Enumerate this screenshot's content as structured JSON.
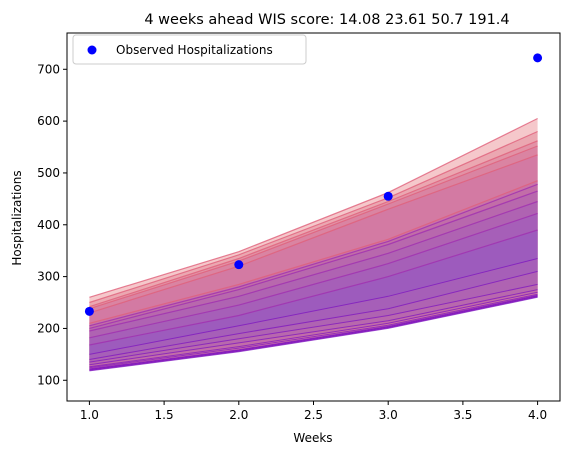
{
  "chart_data": {
    "type": "area",
    "title": "4 weeks ahead WIS score:  14.08  23.61  50.7  191.4",
    "xlabel": "Weeks",
    "ylabel": "Hospitalizations",
    "xlim": [
      0.85,
      4.15
    ],
    "ylim": [
      60,
      770
    ],
    "xticks": [
      1.0,
      1.5,
      2.0,
      2.5,
      3.0,
      3.5,
      4.0
    ],
    "xtick_labels": [
      "1.0",
      "1.5",
      "2.0",
      "2.5",
      "3.0",
      "3.5",
      "4.0"
    ],
    "yticks": [
      100,
      200,
      300,
      400,
      500,
      600,
      700
    ],
    "ytick_labels": [
      "100",
      "200",
      "300",
      "400",
      "500",
      "600",
      "700"
    ],
    "grid": false,
    "legend": {
      "placement": "top-left",
      "entries": [
        "Observed Hospitalizations"
      ]
    },
    "x": [
      1,
      2,
      3,
      4
    ],
    "observed": {
      "name": "Observed Hospitalizations",
      "color": "#0000ff",
      "values": [
        233,
        323,
        455,
        722
      ]
    },
    "quantile_bands": [
      {
        "lower": [
          118,
          155,
          200,
          260
        ],
        "upper": [
          260,
          348,
          462,
          605
        ],
        "color": "#e8848c"
      },
      {
        "lower": [
          119,
          156,
          201,
          261
        ],
        "upper": [
          250,
          342,
          452,
          580
        ],
        "color": "#e07e92"
      },
      {
        "lower": [
          120,
          157,
          202,
          262
        ],
        "upper": [
          242,
          335,
          445,
          562
        ],
        "color": "#d87998"
      },
      {
        "lower": [
          121,
          158,
          203,
          263
        ],
        "upper": [
          238,
          330,
          440,
          552
        ],
        "color": "#d0749e"
      },
      {
        "lower": [
          122,
          159,
          204,
          264
        ],
        "upper": [
          230,
          320,
          430,
          535
        ],
        "color": "#c96fa3"
      },
      {
        "lower": [
          124,
          162,
          206,
          266
        ],
        "upper": [
          210,
          285,
          372,
          485
        ],
        "color": "#c06aa9"
      },
      {
        "lower": [
          126,
          165,
          210,
          270
        ],
        "upper": [
          205,
          280,
          368,
          478
        ],
        "color": "#b766ae"
      },
      {
        "lower": [
          130,
          172,
          215,
          275
        ],
        "upper": [
          200,
          275,
          362,
          465
        ],
        "color": "#ae62b4"
      },
      {
        "lower": [
          135,
          180,
          225,
          285
        ],
        "upper": [
          195,
          262,
          345,
          445
        ],
        "color": "#a55eb9"
      },
      {
        "lower": [
          140,
          190,
          238,
          310
        ],
        "upper": [
          182,
          245,
          325,
          422
        ],
        "color": "#9b5abf"
      },
      {
        "lower": [
          150,
          205,
          262,
          335
        ],
        "upper": [
          168,
          225,
          300,
          390
        ],
        "color": "#9257c4"
      }
    ],
    "colors": {
      "band_edge_top": "#e06070",
      "band_edge_bottom": "#6a00c0",
      "observed": "#0000ff"
    }
  }
}
